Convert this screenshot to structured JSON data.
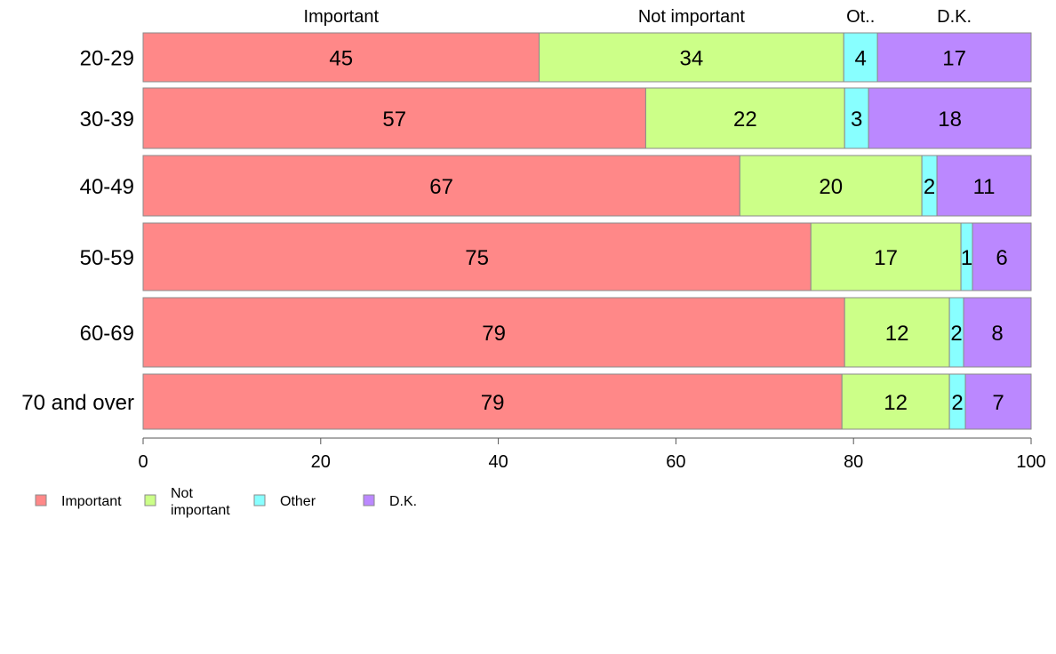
{
  "chart_data": {
    "type": "bar",
    "orientation": "horizontal",
    "stacked": true,
    "categories": [
      "20-29",
      "30-39",
      "40-49",
      "50-59",
      "60-69",
      "70 and over"
    ],
    "series": [
      {
        "name": "Important",
        "values": [
          45,
          57,
          67,
          75,
          79,
          79
        ],
        "color": "#FF8888"
      },
      {
        "name": "Not important",
        "values": [
          34,
          22,
          20,
          17,
          12,
          12
        ],
        "color": "#CCFF88"
      },
      {
        "name": "Other",
        "values": [
          4,
          3,
          2,
          1,
          2,
          2
        ],
        "color": "#88FFFF"
      },
      {
        "name": "D.K.",
        "values": [
          17,
          18,
          11,
          6,
          8,
          7
        ],
        "color": "#BB88FF"
      }
    ],
    "plotted_shares": [
      [
        44.6,
        34.3,
        3.8,
        17.3
      ],
      [
        56.6,
        22.4,
        2.7,
        18.3
      ],
      [
        67.2,
        20.5,
        1.7,
        10.6
      ],
      [
        75.2,
        16.9,
        1.3,
        6.6
      ],
      [
        79.0,
        11.8,
        1.6,
        7.6
      ],
      [
        78.7,
        12.1,
        1.8,
        7.4
      ]
    ],
    "column_headers": [
      "Important",
      "Not important",
      "Ot..",
      "D.K."
    ],
    "legend_labels": [
      "Important",
      "Not\nimportant",
      "Other",
      "D.K."
    ],
    "xlim": [
      0,
      100
    ],
    "xticks": [
      0,
      20,
      40,
      60,
      80,
      100
    ],
    "legend_position": "bottom-left",
    "grid": false
  }
}
